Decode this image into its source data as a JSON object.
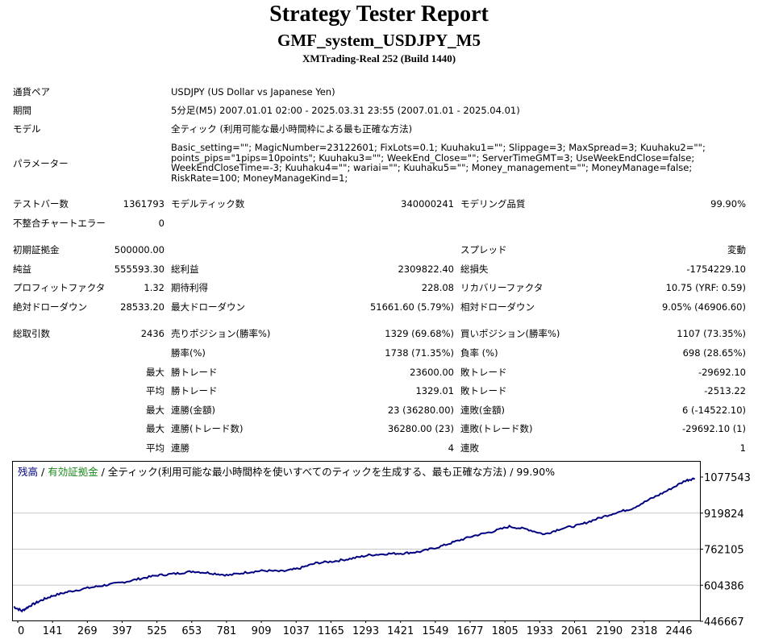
{
  "report": {
    "title": "Strategy Tester Report",
    "subtitle": "GMF_system_USDJPY_M5",
    "server": "XMTrading-Real 252 (Build 1440)"
  },
  "info": {
    "symbol_label": "通貨ペア",
    "symbol_value": "USDJPY (US Dollar vs Japanese Yen)",
    "period_label": "期間",
    "period_value": "5分足(M5) 2007.01.01 02:00 - 2025.03.31 23:55 (2007.01.01 - 2025.04.01)",
    "model_label": "モデル",
    "model_value": "全ティック (利用可能な最小時間枠による最も正確な方法)",
    "params_label": "パラメーター",
    "params_value": "Basic_setting=\"\"; MagicNumber=23122601; FixLots=0.1; Kuuhaku1=\"\"; Slippage=3; MaxSpread=3; Kuuhaku2=\"\"; points_pips=\"1pips=10points\"; Kuuhaku3=\"\"; WeekEnd_Close=\"\"; ServerTimeGMT=3; UseWeekEndClose=false; WeekEndCloseTime=-3; Kuuhaku4=\"\"; wariai=\"\"; Kuuhaku5=\"\"; Money_management=\"\"; MoneyManage=false; RiskRate=100; MoneyManageKind=1;"
  },
  "stats1": {
    "bars_label": "テストバー数",
    "bars_value": "1361793",
    "ticks_label": "モデルティック数",
    "ticks_value": "340000241",
    "quality_label": "モデリング品質",
    "quality_value": "99.90%",
    "mismatch_label": "不整合チャートエラー",
    "mismatch_value": "0"
  },
  "stats2": {
    "deposit_label": "初期証拠金",
    "deposit_value": "500000.00",
    "spread_label": "スプレッド",
    "spread_value": "変動",
    "net_label": "純益",
    "net_value": "555593.30",
    "gross_profit_label": "総利益",
    "gross_profit_value": "2309822.40",
    "gross_loss_label": "総損失",
    "gross_loss_value": "-1754229.10",
    "pf_label": "プロフィットファクタ",
    "pf_value": "1.32",
    "payoff_label": "期待利得",
    "payoff_value": "228.08",
    "recovery_label": "リカバリーファクタ",
    "recovery_value": "10.75 (YRF: 0.59)",
    "abs_dd_label": "絶対ドローダウン",
    "abs_dd_value": "28533.20",
    "max_dd_label": "最大ドローダウン",
    "max_dd_value": "51661.60 (5.79%)",
    "rel_dd_label": "相対ドローダウン",
    "rel_dd_value": "9.05% (46906.60)"
  },
  "trades": {
    "total_label": "総取引数",
    "total_value": "2436",
    "short_label": "売りポジション(勝率%)",
    "short_value": "1329 (69.68%)",
    "long_label": "買いポジション(勝率%)",
    "long_value": "1107 (73.35%)",
    "winrate_label": "勝率(%)",
    "winrate_value": "1738 (71.35%)",
    "lossrate_label": "負率 (%)",
    "lossrate_value": "698 (28.65%)",
    "max_label": "最大",
    "avg_label": "平均",
    "win_trade_label": "勝トレード",
    "loss_trade_label": "敗トレード",
    "max_win_value": "23600.00",
    "max_loss_value": "-29692.10",
    "avg_win_value": "1329.01",
    "avg_loss_value": "-2513.22",
    "cons_win_amt_label": "連勝(金額)",
    "cons_win_amt_value": "23 (36280.00)",
    "cons_loss_amt_label": "連敗(金額)",
    "cons_loss_amt_value": "6 (-14522.10)",
    "cons_win_cnt_label": "連勝(トレード数)",
    "cons_win_cnt_value": "36280.00 (23)",
    "cons_loss_cnt_label": "連敗(トレード数)",
    "cons_loss_cnt_value": "-29692.10 (1)",
    "avg_cons_win_label": "連勝",
    "avg_cons_win_value": "4",
    "avg_cons_loss_label": "連敗",
    "avg_cons_loss_value": "1"
  },
  "chart_legend": {
    "balance": "残高",
    "sep1": " / ",
    "equity": "有効証拠金",
    "sep2": " / ",
    "model": "全ティック(利用可能な最小時間枠を使いすべてのティックを生成する、最も正確な方法) / 99.90%"
  },
  "colors": {
    "line": "#000080",
    "equity": "#1a8a1a"
  },
  "chart_data": {
    "type": "line",
    "x_ticks": [
      "0",
      "141",
      "269",
      "397",
      "525",
      "653",
      "781",
      "909",
      "1037",
      "1165",
      "1293",
      "1421",
      "1549",
      "1677",
      "1805",
      "1933",
      "2061",
      "2190",
      "2318",
      "2446"
    ],
    "y_ticks": [
      "1077543",
      "919824",
      "762105",
      "604386",
      "446667"
    ],
    "ylim": [
      446667,
      1077543
    ],
    "xlim": [
      0,
      2490
    ],
    "series": [
      {
        "x": [
          0,
          30,
          60,
          100,
          141,
          200,
          269,
          330,
          397,
          460,
          525,
          590,
          653,
          720,
          781,
          850,
          909,
          980,
          1037,
          1100,
          1165,
          1230,
          1293,
          1360,
          1421,
          1480,
          1549,
          1610,
          1677,
          1740,
          1805,
          1870,
          1933,
          1990,
          2061,
          2120,
          2190,
          2250,
          2318,
          2380,
          2446,
          2480
        ],
        "y": [
          510000,
          492000,
          515000,
          538000,
          558000,
          576000,
          592000,
          604000,
          617000,
          633000,
          648000,
          655000,
          665000,
          657000,
          648000,
          661000,
          668000,
          665000,
          677000,
          701000,
          709000,
          721000,
          736000,
          742000,
          744000,
          751000,
          772000,
          796000,
          821000,
          838000,
          861000,
          849000,
          827000,
          851000,
          868000,
          893000,
          921000,
          939000,
          981000,
          1018000,
          1062000,
          1072000
        ]
      }
    ]
  }
}
